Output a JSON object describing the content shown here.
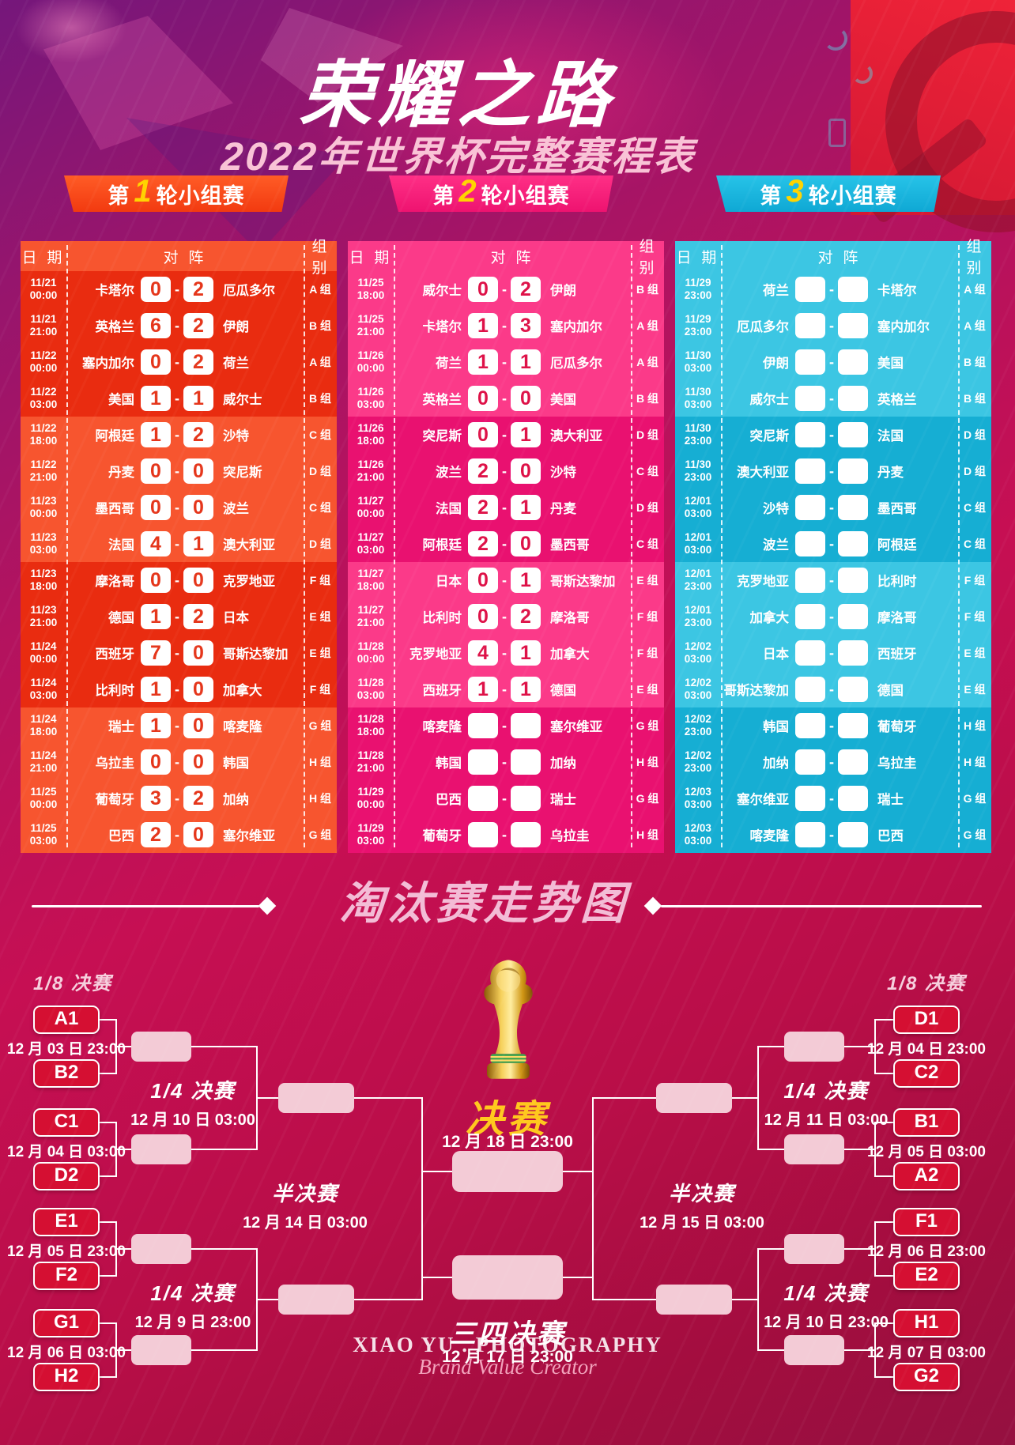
{
  "poster": {
    "title": "荣耀之路",
    "subtitle": "2022年世界杯完整赛程表"
  },
  "group_stage": {
    "columns": {
      "date": "日 期",
      "match": "对 阵",
      "group": "组 别"
    },
    "score_separator": "-",
    "rounds": [
      {
        "label_prefix": "第",
        "number": "1",
        "label_suffix": "轮小组赛",
        "rows": [
          {
            "date": "11/21",
            "time": "00:00",
            "home": "卡塔尔",
            "home_score": "0",
            "away_score": "2",
            "away": "厄瓜多尔",
            "group": "A 组"
          },
          {
            "date": "11/21",
            "time": "21:00",
            "home": "英格兰",
            "home_score": "6",
            "away_score": "2",
            "away": "伊朗",
            "group": "B 组"
          },
          {
            "date": "11/22",
            "time": "00:00",
            "home": "塞内加尔",
            "home_score": "0",
            "away_score": "2",
            "away": "荷兰",
            "group": "A 组"
          },
          {
            "date": "11/22",
            "time": "03:00",
            "home": "美国",
            "home_score": "1",
            "away_score": "1",
            "away": "威尔士",
            "group": "B 组"
          },
          {
            "date": "11/22",
            "time": "18:00",
            "home": "阿根廷",
            "home_score": "1",
            "away_score": "2",
            "away": "沙特",
            "group": "C 组"
          },
          {
            "date": "11/22",
            "time": "21:00",
            "home": "丹麦",
            "home_score": "0",
            "away_score": "0",
            "away": "突尼斯",
            "group": "D 组"
          },
          {
            "date": "11/23",
            "time": "00:00",
            "home": "墨西哥",
            "home_score": "0",
            "away_score": "0",
            "away": "波兰",
            "group": "C 组"
          },
          {
            "date": "11/23",
            "time": "03:00",
            "home": "法国",
            "home_score": "4",
            "away_score": "1",
            "away": "澳大利亚",
            "group": "D 组"
          },
          {
            "date": "11/23",
            "time": "18:00",
            "home": "摩洛哥",
            "home_score": "0",
            "away_score": "0",
            "away": "克罗地亚",
            "group": "F 组"
          },
          {
            "date": "11/23",
            "time": "21:00",
            "home": "德国",
            "home_score": "1",
            "away_score": "2",
            "away": "日本",
            "group": "E 组"
          },
          {
            "date": "11/24",
            "time": "00:00",
            "home": "西班牙",
            "home_score": "7",
            "away_score": "0",
            "away": "哥斯达黎加",
            "group": "E 组"
          },
          {
            "date": "11/24",
            "time": "03:00",
            "home": "比利时",
            "home_score": "1",
            "away_score": "0",
            "away": "加拿大",
            "group": "F 组"
          },
          {
            "date": "11/24",
            "time": "18:00",
            "home": "瑞士",
            "home_score": "1",
            "away_score": "0",
            "away": "喀麦隆",
            "group": "G 组"
          },
          {
            "date": "11/24",
            "time": "21:00",
            "home": "乌拉圭",
            "home_score": "0",
            "away_score": "0",
            "away": "韩国",
            "group": "H 组"
          },
          {
            "date": "11/25",
            "time": "00:00",
            "home": "葡萄牙",
            "home_score": "3",
            "away_score": "2",
            "away": "加纳",
            "group": "H 组"
          },
          {
            "date": "11/25",
            "time": "03:00",
            "home": "巴西",
            "home_score": "2",
            "away_score": "0",
            "away": "塞尔维亚",
            "group": "G 组"
          }
        ]
      },
      {
        "label_prefix": "第",
        "number": "2",
        "label_suffix": "轮小组赛",
        "rows": [
          {
            "date": "11/25",
            "time": "18:00",
            "home": "威尔士",
            "home_score": "0",
            "away_score": "2",
            "away": "伊朗",
            "group": "B 组"
          },
          {
            "date": "11/25",
            "time": "21:00",
            "home": "卡塔尔",
            "home_score": "1",
            "away_score": "3",
            "away": "塞内加尔",
            "group": "A 组"
          },
          {
            "date": "11/26",
            "time": "00:00",
            "home": "荷兰",
            "home_score": "1",
            "away_score": "1",
            "away": "厄瓜多尔",
            "group": "A 组"
          },
          {
            "date": "11/26",
            "time": "03:00",
            "home": "英格兰",
            "home_score": "0",
            "away_score": "0",
            "away": "美国",
            "group": "B 组"
          },
          {
            "date": "11/26",
            "time": "18:00",
            "home": "突尼斯",
            "home_score": "0",
            "away_score": "1",
            "away": "澳大利亚",
            "group": "D 组"
          },
          {
            "date": "11/26",
            "time": "21:00",
            "home": "波兰",
            "home_score": "2",
            "away_score": "0",
            "away": "沙特",
            "group": "C 组"
          },
          {
            "date": "11/27",
            "time": "00:00",
            "home": "法国",
            "home_score": "2",
            "away_score": "1",
            "away": "丹麦",
            "group": "D 组"
          },
          {
            "date": "11/27",
            "time": "03:00",
            "home": "阿根廷",
            "home_score": "2",
            "away_score": "0",
            "away": "墨西哥",
            "group": "C 组"
          },
          {
            "date": "11/27",
            "time": "18:00",
            "home": "日本",
            "home_score": "0",
            "away_score": "1",
            "away": "哥斯达黎加",
            "group": "E 组"
          },
          {
            "date": "11/27",
            "time": "21:00",
            "home": "比利时",
            "home_score": "0",
            "away_score": "2",
            "away": "摩洛哥",
            "group": "F 组"
          },
          {
            "date": "11/28",
            "time": "00:00",
            "home": "克罗地亚",
            "home_score": "4",
            "away_score": "1",
            "away": "加拿大",
            "group": "F 组"
          },
          {
            "date": "11/28",
            "time": "03:00",
            "home": "西班牙",
            "home_score": "1",
            "away_score": "1",
            "away": "德国",
            "group": "E 组"
          },
          {
            "date": "11/28",
            "time": "18:00",
            "home": "喀麦隆",
            "home_score": "",
            "away_score": "",
            "away": "塞尔维亚",
            "group": "G 组"
          },
          {
            "date": "11/28",
            "time": "21:00",
            "home": "韩国",
            "home_score": "",
            "away_score": "",
            "away": "加纳",
            "group": "H 组"
          },
          {
            "date": "11/29",
            "time": "00:00",
            "home": "巴西",
            "home_score": "",
            "away_score": "",
            "away": "瑞士",
            "group": "G 组"
          },
          {
            "date": "11/29",
            "time": "03:00",
            "home": "葡萄牙",
            "home_score": "",
            "away_score": "",
            "away": "乌拉圭",
            "group": "H 组"
          }
        ]
      },
      {
        "label_prefix": "第",
        "number": "3",
        "label_suffix": "轮小组赛",
        "rows": [
          {
            "date": "11/29",
            "time": "23:00",
            "home": "荷兰",
            "home_score": "",
            "away_score": "",
            "away": "卡塔尔",
            "group": "A 组"
          },
          {
            "date": "11/29",
            "time": "23:00",
            "home": "厄瓜多尔",
            "home_score": "",
            "away_score": "",
            "away": "塞内加尔",
            "group": "A 组"
          },
          {
            "date": "11/30",
            "time": "03:00",
            "home": "伊朗",
            "home_score": "",
            "away_score": "",
            "away": "美国",
            "group": "B 组"
          },
          {
            "date": "11/30",
            "time": "03:00",
            "home": "威尔士",
            "home_score": "",
            "away_score": "",
            "away": "英格兰",
            "group": "B 组"
          },
          {
            "date": "11/30",
            "time": "23:00",
            "home": "突尼斯",
            "home_score": "",
            "away_score": "",
            "away": "法国",
            "group": "D 组"
          },
          {
            "date": "11/30",
            "time": "23:00",
            "home": "澳大利亚",
            "home_score": "",
            "away_score": "",
            "away": "丹麦",
            "group": "D 组"
          },
          {
            "date": "12/01",
            "time": "03:00",
            "home": "沙特",
            "home_score": "",
            "away_score": "",
            "away": "墨西哥",
            "group": "C 组"
          },
          {
            "date": "12/01",
            "time": "03:00",
            "home": "波兰",
            "home_score": "",
            "away_score": "",
            "away": "阿根廷",
            "group": "C 组"
          },
          {
            "date": "12/01",
            "time": "23:00",
            "home": "克罗地亚",
            "home_score": "",
            "away_score": "",
            "away": "比利时",
            "group": "F 组"
          },
          {
            "date": "12/01",
            "time": "23:00",
            "home": "加拿大",
            "home_score": "",
            "away_score": "",
            "away": "摩洛哥",
            "group": "F 组"
          },
          {
            "date": "12/02",
            "time": "03:00",
            "home": "日本",
            "home_score": "",
            "away_score": "",
            "away": "西班牙",
            "group": "E 组"
          },
          {
            "date": "12/02",
            "time": "03:00",
            "home": "哥斯达黎加",
            "home_score": "",
            "away_score": "",
            "away": "德国",
            "group": "E 组"
          },
          {
            "date": "12/02",
            "time": "23:00",
            "home": "韩国",
            "home_score": "",
            "away_score": "",
            "away": "葡萄牙",
            "group": "H 组"
          },
          {
            "date": "12/02",
            "time": "23:00",
            "home": "加纳",
            "home_score": "",
            "away_score": "",
            "away": "乌拉圭",
            "group": "H 组"
          },
          {
            "date": "12/03",
            "time": "03:00",
            "home": "塞尔维亚",
            "home_score": "",
            "away_score": "",
            "away": "瑞士",
            "group": "G 组"
          },
          {
            "date": "12/03",
            "time": "03:00",
            "home": "喀麦隆",
            "home_score": "",
            "away_score": "",
            "away": "巴西",
            "group": "G 组"
          }
        ]
      }
    ]
  },
  "knockout": {
    "section_title": "淘汰赛走势图",
    "r16_label": "1/8 决赛",
    "qf_label": "1/4 决赛",
    "sf_label": "半决赛",
    "final_label": "决赛",
    "final_date": "12 月 18 日 23:00",
    "third_place_label": "三四决赛",
    "third_place_date": "12 月 17 日 23:00",
    "left": {
      "pairs": [
        {
          "top": "A1",
          "date": "12 月 03 日 23:00",
          "bottom": "B2"
        },
        {
          "top": "C1",
          "date": "12 月 04 日 03:00",
          "bottom": "D2"
        },
        {
          "top": "E1",
          "date": "12 月 05 日 23:00",
          "bottom": "F2"
        },
        {
          "top": "G1",
          "date": "12 月 06 日 03:00",
          "bottom": "H2"
        }
      ],
      "qf_top_date": "12 月 10 日 03:00",
      "qf_bottom_date": "12 月 9 日  23:00",
      "sf_date": "12 月 14 日 03:00"
    },
    "right": {
      "pairs": [
        {
          "top": "D1",
          "date": "12 月 04 日 23:00",
          "bottom": "C2"
        },
        {
          "top": "B1",
          "date": "12 月 05 日 03:00",
          "bottom": "A2"
        },
        {
          "top": "F1",
          "date": "12 月 06 日 23:00",
          "bottom": "E2"
        },
        {
          "top": "H1",
          "date": "12 月 07 日 03:00",
          "bottom": "G2"
        }
      ],
      "qf_top_date": "12 月 11 日 03:00",
      "qf_bottom_date": "12 月 10 日 23:00",
      "sf_date": "12 月 15 日 03:00"
    }
  },
  "watermark": {
    "line1": "XIAO YU . PHOTOGRAPHY",
    "line2": "Brand Value Creator"
  },
  "colors": {
    "round1_accent": "#f7552f",
    "round1_dark": "#e92c10",
    "round2_accent": "#fb3a89",
    "round2_dark": "#e91170",
    "round3_accent": "#3cc6e3",
    "round3_dark": "#16aed3",
    "score_text_round1": "#e5361b",
    "score_text_round2": "#de1248",
    "bracket_box_red": "#d50f32",
    "bracket_slot_pink": "#f3cbd6",
    "final_label_gold": "#ffc81e",
    "ribbon_number_yellow": "#ffd400"
  }
}
